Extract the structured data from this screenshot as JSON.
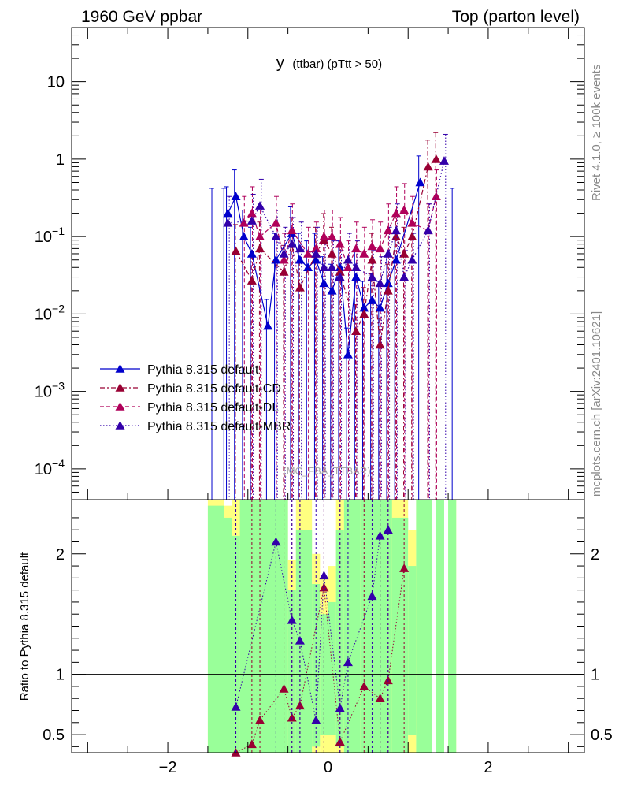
{
  "header": {
    "left": "1960 GeV ppbar",
    "right": "Top (parton level)"
  },
  "side_labels": {
    "rivet": "Rivet 4.1.0, ≥ 100k events",
    "mcplots": "mcplots.cern.ch [arXiv:2401.10621]"
  },
  "plot_title": {
    "main": "y",
    "sub": "(ttbar) (pTtt > 50)"
  },
  "watermark": "(MC_FBA_TTBAR)",
  "ratio_ylabel": "Ratio to Pythia 8.315 default",
  "colors": {
    "default": "#0000cc",
    "cd": "#990033",
    "dl": "#b0005a",
    "mbr": "#3300aa",
    "band_green": "#99ff99",
    "band_yellow": "#ffff80"
  },
  "chart_data": [
    {
      "type": "line",
      "title": "y (ttbar) (pTtt > 50)",
      "xlabel": "",
      "ylabel": "",
      "xlim": [
        -3.2,
        3.2
      ],
      "ylim": [
        4e-05,
        50
      ],
      "yscale": "log",
      "y_ticks": [
        {
          "value": 10,
          "label": "10"
        },
        {
          "value": 1,
          "label": "1"
        },
        {
          "value": 0.1,
          "label": "10^-1"
        },
        {
          "value": 0.01,
          "label": "10^-2"
        },
        {
          "value": 0.001,
          "label": "10^-3"
        },
        {
          "value": 0.0001,
          "label": "10^-4"
        }
      ],
      "legend_position": "middle-left",
      "series": [
        {
          "name": "Pythia 8.315 default",
          "style": "solid",
          "x": [
            -1.25,
            -1.15,
            -1.05,
            -0.95,
            -0.75,
            -0.65,
            -0.45,
            -0.35,
            -0.25,
            -0.15,
            -0.05,
            0.05,
            0.15,
            0.25,
            0.35,
            0.45,
            0.55,
            0.65,
            0.75,
            0.85,
            1.15
          ],
          "y": [
            0.2,
            0.33,
            0.1,
            0.06,
            0.007,
            0.05,
            0.11,
            0.05,
            0.04,
            0.05,
            0.025,
            0.02,
            0.04,
            0.003,
            0.03,
            0.012,
            0.015,
            0.012,
            0.025,
            0.05,
            0.5
          ]
        },
        {
          "name": "Pythia 8.315 default-CD",
          "style": "dash-dot",
          "x": [
            -1.15,
            -0.95,
            -0.85,
            -0.55,
            -0.45,
            -0.35,
            -0.15,
            -0.05,
            0.05,
            0.15,
            0.35,
            0.45,
            0.55,
            0.65,
            0.75,
            0.85,
            0.95,
            1.05,
            1.25,
            1.35
          ],
          "y": [
            0.065,
            0.027,
            0.07,
            0.035,
            0.08,
            0.022,
            0.06,
            0.09,
            0.06,
            0.035,
            0.006,
            0.01,
            0.05,
            0.004,
            0.02,
            0.1,
            0.06,
            0.1,
            0.8,
            1.0
          ]
        },
        {
          "name": "Pythia 8.315 default-DL",
          "style": "dashed",
          "x": [
            -1.05,
            -0.95,
            -0.85,
            -0.65,
            -0.55,
            -0.45,
            -0.25,
            -0.15,
            -0.05,
            0.05,
            0.15,
            0.25,
            0.35,
            0.45,
            0.55,
            0.65,
            0.75,
            0.85,
            0.95,
            1.05,
            1.25,
            1.35
          ],
          "y": [
            0.15,
            0.2,
            0.1,
            0.15,
            0.05,
            0.12,
            0.06,
            0.07,
            0.1,
            0.1,
            0.08,
            0.04,
            0.07,
            0.06,
            0.075,
            0.07,
            0.12,
            0.2,
            0.22,
            0.15,
            0.12,
            0.33
          ]
        },
        {
          "name": "Pythia 8.315 default-MBR",
          "style": "dotted",
          "x": [
            -1.25,
            -0.95,
            -0.85,
            -0.65,
            -0.55,
            -0.45,
            -0.35,
            -0.15,
            -0.05,
            0.05,
            0.15,
            0.25,
            0.35,
            0.55,
            0.65,
            0.75,
            0.85,
            0.95,
            1.05,
            1.25,
            1.45
          ],
          "y": [
            0.15,
            0.16,
            0.25,
            0.1,
            0.06,
            0.08,
            0.07,
            0.06,
            0.04,
            0.04,
            0.03,
            0.05,
            0.04,
            0.03,
            0.025,
            0.06,
            0.12,
            0.03,
            0.05,
            0.12,
            0.95
          ]
        }
      ]
    },
    {
      "type": "line",
      "title": "",
      "xlabel": "",
      "ylabel": "Ratio to Pythia 8.315 default",
      "xlim": [
        -3.2,
        3.2
      ],
      "ylim": [
        0.35,
        2.45
      ],
      "x_ticks": [
        {
          "value": -2,
          "label": "−2"
        },
        {
          "value": 0,
          "label": "0"
        },
        {
          "value": 2,
          "label": "2"
        }
      ],
      "y_ticks": [
        {
          "value": 0.5,
          "label": "0.5"
        },
        {
          "value": 1,
          "label": "1"
        },
        {
          "value": 2,
          "label": "2"
        }
      ],
      "reference_line": 1,
      "series": [
        {
          "name": "Pythia 8.315 default-CD",
          "x": [
            -1.15,
            -0.95,
            -0.85,
            -0.55,
            -0.45,
            -0.35,
            -0.05,
            0.15,
            0.45,
            0.65,
            0.75,
            0.95
          ],
          "y": [
            0.3,
            0.42,
            0.62,
            0.88,
            0.64,
            0.74,
            1.72,
            0.44,
            0.9,
            0.8,
            0.95,
            1.88
          ]
        },
        {
          "name": "Pythia 8.315 default-MBR",
          "x": [
            -1.15,
            -0.65,
            -0.45,
            -0.35,
            -0.15,
            -0.05,
            0.15,
            0.25,
            0.55,
            0.65,
            0.75
          ],
          "y": [
            0.73,
            2.1,
            1.45,
            1.28,
            0.62,
            1.82,
            0.72,
            1.1,
            1.65,
            2.15,
            2.2
          ]
        }
      ],
      "band_bins": [
        {
          "x0": -1.5,
          "x1": -1.3,
          "green": [
            0.3,
            2.4
          ],
          "yellow": [
            0.3,
            2.45
          ]
        },
        {
          "x0": -1.3,
          "x1": -1.2,
          "green": [
            0.3,
            2.3
          ],
          "yellow": [
            0.3,
            2.4
          ]
        },
        {
          "x0": -1.2,
          "x1": -1.1,
          "green": [
            0.3,
            2.15
          ],
          "yellow": [
            0.3,
            2.45
          ]
        },
        {
          "x0": -1.1,
          "x1": -0.9,
          "green": [
            0.3,
            2.45
          ],
          "yellow": [
            0.3,
            2.45
          ]
        },
        {
          "x0": -0.9,
          "x1": -0.7,
          "green": [
            0.3,
            2.45
          ],
          "yellow": [
            0.3,
            2.45
          ]
        },
        {
          "x0": -0.7,
          "x1": -0.5,
          "green": [
            0.3,
            2.45
          ],
          "yellow": [
            0.3,
            2.45
          ]
        },
        {
          "x0": -0.5,
          "x1": -0.4,
          "green": [
            0.3,
            1.7
          ],
          "yellow": [
            0.3,
            1.95
          ]
        },
        {
          "x0": -0.4,
          "x1": -0.2,
          "green": [
            0.3,
            2.2
          ],
          "yellow": [
            0.3,
            2.45
          ]
        },
        {
          "x0": -0.2,
          "x1": -0.1,
          "green": [
            0.4,
            1.75
          ],
          "yellow": [
            0.3,
            2.0
          ]
        },
        {
          "x0": -0.1,
          "x1": 0.0,
          "green": [
            0.5,
            1.5
          ],
          "yellow": [
            0.35,
            1.8
          ]
        },
        {
          "x0": 0.0,
          "x1": 0.1,
          "green": [
            0.5,
            1.6
          ],
          "yellow": [
            0.35,
            1.9
          ]
        },
        {
          "x0": 0.1,
          "x1": 0.2,
          "green": [
            0.4,
            2.2
          ],
          "yellow": [
            0.3,
            2.45
          ]
        },
        {
          "x0": 0.2,
          "x1": 0.4,
          "green": [
            0.3,
            2.45
          ],
          "yellow": [
            0.3,
            2.45
          ]
        },
        {
          "x0": 0.4,
          "x1": 0.6,
          "green": [
            0.3,
            2.45
          ],
          "yellow": [
            0.3,
            2.45
          ]
        },
        {
          "x0": 0.6,
          "x1": 0.8,
          "green": [
            0.3,
            2.45
          ],
          "yellow": [
            0.3,
            2.45
          ]
        },
        {
          "x0": 0.8,
          "x1": 1.0,
          "green": [
            0.3,
            2.3
          ],
          "yellow": [
            0.3,
            2.45
          ]
        },
        {
          "x0": 1.0,
          "x1": 1.1,
          "green": [
            0.5,
            1.9
          ],
          "yellow": [
            0.3,
            2.2
          ]
        },
        {
          "x0": 1.1,
          "x1": 1.3,
          "green": [
            0.3,
            2.45
          ],
          "yellow": [
            0.3,
            2.45
          ]
        },
        {
          "x0": 1.35,
          "x1": 1.45,
          "green": [
            0.3,
            2.45
          ],
          "yellow": [
            0.3,
            2.45
          ]
        },
        {
          "x0": 1.5,
          "x1": 1.6,
          "green": [
            0.3,
            2.45
          ],
          "yellow": [
            0.3,
            2.45
          ]
        }
      ]
    }
  ]
}
